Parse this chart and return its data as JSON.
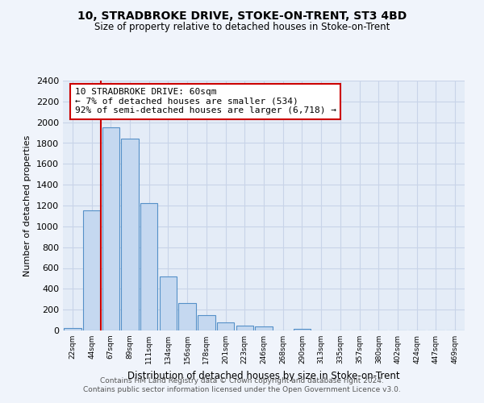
{
  "title": "10, STRADBROKE DRIVE, STOKE-ON-TRENT, ST3 4BD",
  "subtitle": "Size of property relative to detached houses in Stoke-on-Trent",
  "xlabel": "Distribution of detached houses by size in Stoke-on-Trent",
  "ylabel": "Number of detached properties",
  "footer_line1": "Contains HM Land Registry data © Crown copyright and database right 2024.",
  "footer_line2": "Contains public sector information licensed under the Open Government Licence v3.0.",
  "bin_labels": [
    "22sqm",
    "44sqm",
    "67sqm",
    "89sqm",
    "111sqm",
    "134sqm",
    "156sqm",
    "178sqm",
    "201sqm",
    "223sqm",
    "246sqm",
    "268sqm",
    "290sqm",
    "313sqm",
    "335sqm",
    "357sqm",
    "380sqm",
    "402sqm",
    "424sqm",
    "447sqm",
    "469sqm"
  ],
  "bar_values": [
    25,
    1150,
    1950,
    1840,
    1220,
    520,
    265,
    148,
    80,
    50,
    38,
    0,
    12,
    0,
    0,
    0,
    0,
    0,
    0,
    0,
    0
  ],
  "bar_color": "#c5d8f0",
  "bar_edge_color": "#5590c8",
  "marker_line_color": "#cc0000",
  "annotation_title": "10 STRADBROKE DRIVE: 60sqm",
  "annotation_line1": "← 7% of detached houses are smaller (534)",
  "annotation_line2": "92% of semi-detached houses are larger (6,718) →",
  "annotation_box_color": "#ffffff",
  "annotation_box_edge": "#cc0000",
  "ylim": [
    0,
    2400
  ],
  "yticks": [
    0,
    200,
    400,
    600,
    800,
    1000,
    1200,
    1400,
    1600,
    1800,
    2000,
    2200,
    2400
  ],
  "bg_color": "#f0f4fb",
  "plot_bg_color": "#e4ecf7",
  "grid_color": "#c8d4e8"
}
